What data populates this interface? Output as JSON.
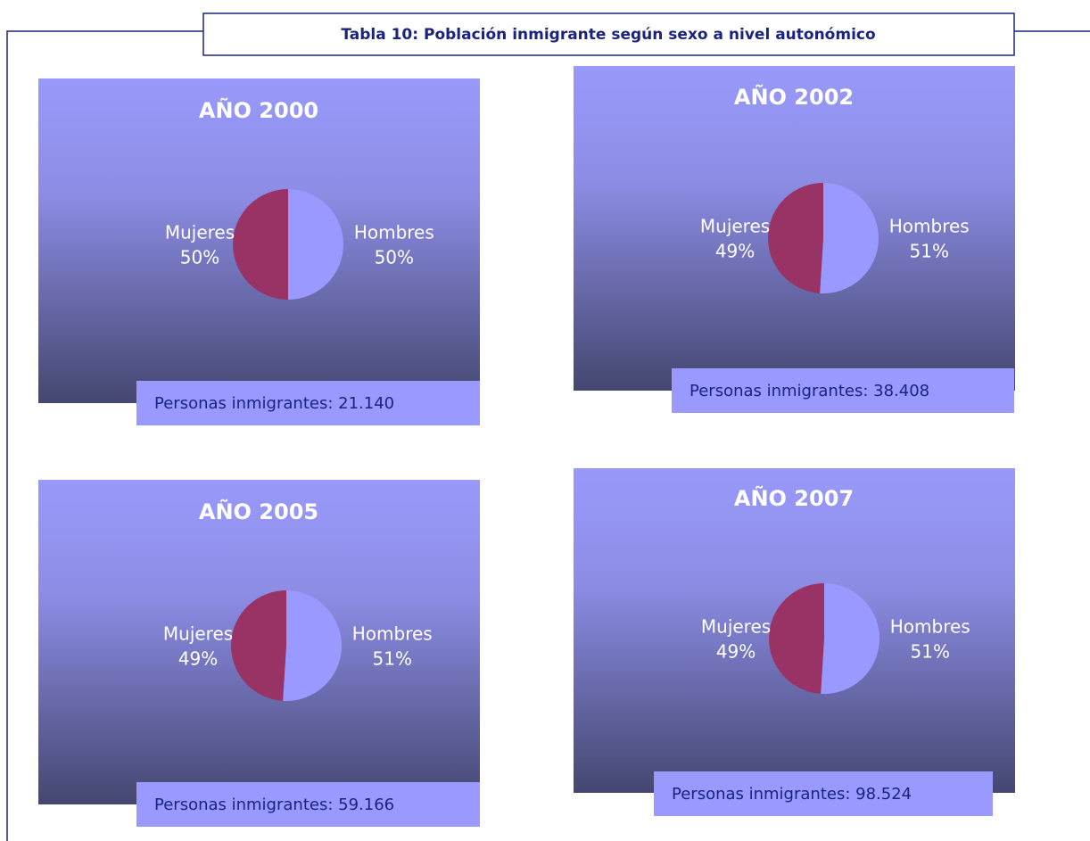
{
  "title": "Tabla 10: Población inmigrante según sexo a nivel autonómico",
  "chart_data": [
    {
      "type": "pie",
      "title": "AÑO 2000",
      "categories": [
        "Hombres",
        "Mujeres"
      ],
      "values": [
        50,
        50
      ],
      "value_labels": [
        "50%",
        "50%"
      ],
      "colors": [
        "#9999ff",
        "#993366"
      ],
      "annotation": "Personas inmigrantes: 21.140"
    },
    {
      "type": "pie",
      "title": "AÑO 2002",
      "categories": [
        "Hombres",
        "Mujeres"
      ],
      "values": [
        51,
        49
      ],
      "value_labels": [
        "51%",
        "49%"
      ],
      "colors": [
        "#9999ff",
        "#993366"
      ],
      "annotation": "Personas inmigrantes: 38.408"
    },
    {
      "type": "pie",
      "title": "AÑO 2005",
      "categories": [
        "Hombres",
        "Mujeres"
      ],
      "values": [
        51,
        49
      ],
      "value_labels": [
        "51%",
        "49%"
      ],
      "colors": [
        "#9999ff",
        "#993366"
      ],
      "annotation": "Personas inmigrantes: 59.166"
    },
    {
      "type": "pie",
      "title": "AÑO 2007",
      "categories": [
        "Hombres",
        "Mujeres"
      ],
      "values": [
        51,
        49
      ],
      "value_labels": [
        "51%",
        "49%"
      ],
      "colors": [
        "#9999ff",
        "#993366"
      ],
      "annotation": "Personas inmigrantes: 98.524"
    }
  ]
}
